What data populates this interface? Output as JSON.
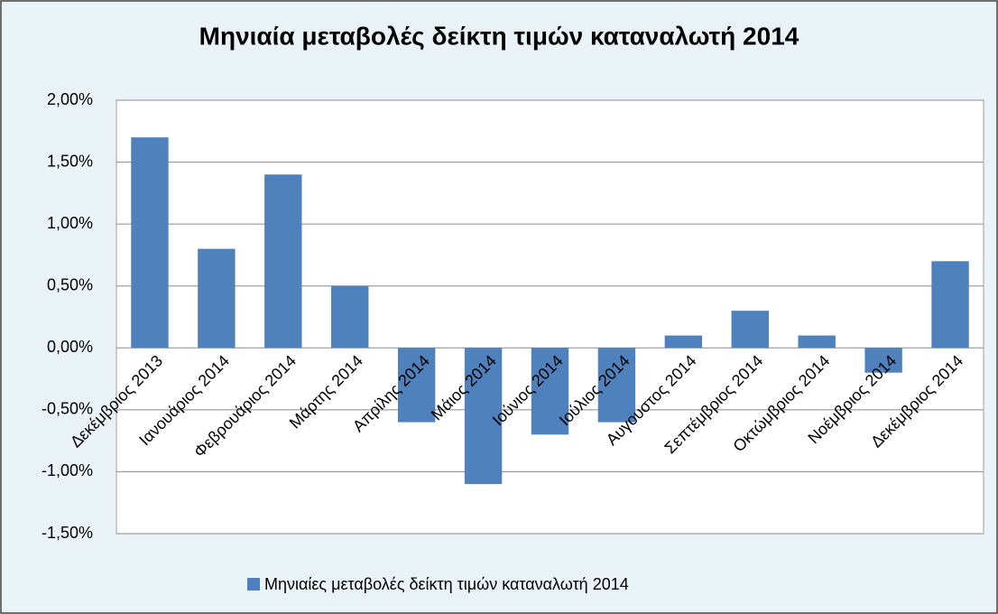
{
  "chart_data": {
    "type": "bar",
    "title": "Μηνιαία μεταβολές δείκτη τιμών καταναλωτή 2014",
    "categories": [
      "Δεκέμβριος 2013",
      "Ιανουάριος 2014",
      "Φεβρουάριος 2014",
      "Μάρτης 2014",
      "Απρίλης 2014",
      "Μάιος 2014",
      "Ιούνιος 2014",
      "Ιούλιος 2014",
      "Αυγουστος 2014",
      "Σεπτέμβριος 2014",
      "Οκτώμβριος 2014",
      "Νοέμβριος 2014",
      "Δεκέμβριος 2014"
    ],
    "series": [
      {
        "name": "Μηνιαίες μεταβολές δείκτη τιμών καταναλωτή 2014",
        "color": "#4f81bd",
        "values": [
          1.7,
          0.8,
          1.4,
          0.5,
          -0.6,
          -1.1,
          -0.7,
          -0.6,
          0.1,
          0.3,
          0.1,
          -0.2,
          0.7
        ]
      }
    ],
    "ylim": [
      -1.5,
      2
    ],
    "yticks": [
      {
        "value": -1.5,
        "label": "-1,50%"
      },
      {
        "value": -1,
        "label": "-1,00%"
      },
      {
        "value": -0.5,
        "label": "-0,50%"
      },
      {
        "value": 0,
        "label": "0,00%"
      },
      {
        "value": 0.5,
        "label": "0,50%"
      },
      {
        "value": 1,
        "label": "1,00%"
      },
      {
        "value": 1.5,
        "label": "1,50%"
      },
      {
        "value": 2,
        "label": "2,00%"
      }
    ],
    "grid": true,
    "legend": "bottom"
  }
}
